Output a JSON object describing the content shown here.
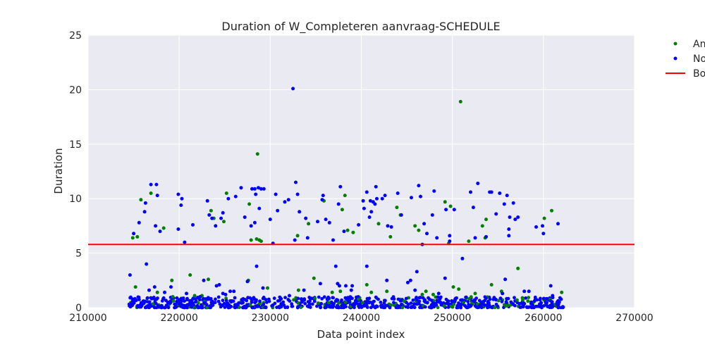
{
  "chart_data": {
    "type": "scatter",
    "title": "Duration of W_Completeren aanvraag-SCHEDULE",
    "xlabel": "Data point index",
    "ylabel": "Duration",
    "xlim": [
      210000,
      270000
    ],
    "ylim": [
      0,
      25
    ],
    "x_ticks": [
      "210000",
      "220000",
      "230000",
      "240000",
      "250000",
      "260000",
      "270000"
    ],
    "y_ticks": [
      "0",
      "5",
      "10",
      "15",
      "20",
      "25"
    ],
    "grid": true,
    "legend_position": "outside right",
    "background": "#EAEAF2",
    "series": [
      {
        "name": "An",
        "color": "#008000",
        "points": [
          [
            214900,
            6.4
          ],
          [
            215400,
            6.5
          ],
          [
            215200,
            1.9
          ],
          [
            215800,
            9.9
          ],
          [
            216900,
            10.5
          ],
          [
            217600,
            1.4
          ],
          [
            218300,
            7.3
          ],
          [
            219200,
            2.5
          ],
          [
            219300,
            1.0
          ],
          [
            221200,
            3.0
          ],
          [
            221700,
            1.1
          ],
          [
            222500,
            1.1
          ],
          [
            223200,
            2.6
          ],
          [
            223500,
            8.9
          ],
          [
            223800,
            8.2
          ],
          [
            224900,
            7.9
          ],
          [
            225200,
            10.5
          ],
          [
            227600,
            2.5
          ],
          [
            227700,
            9.5
          ],
          [
            227900,
            6.2
          ],
          [
            228500,
            6.3
          ],
          [
            228600,
            14.1
          ],
          [
            228800,
            6.2
          ],
          [
            229000,
            6.1
          ],
          [
            229700,
            1.8
          ],
          [
            233000,
            6.6
          ],
          [
            233100,
            1.6
          ],
          [
            234200,
            7.7
          ],
          [
            234800,
            2.7
          ],
          [
            235900,
            9.8
          ],
          [
            236800,
            1.4
          ],
          [
            237700,
            1.5
          ],
          [
            237900,
            9.0
          ],
          [
            238200,
            10.3
          ],
          [
            238500,
            7.1
          ],
          [
            239100,
            6.9
          ],
          [
            240600,
            2.1
          ],
          [
            241100,
            1.4
          ],
          [
            241900,
            7.7
          ],
          [
            242800,
            1.5
          ],
          [
            243200,
            6.5
          ],
          [
            243900,
            9.2
          ],
          [
            244300,
            8.5
          ],
          [
            245900,
            7.5
          ],
          [
            246300,
            7.1
          ],
          [
            246700,
            1.2
          ],
          [
            247100,
            1.5
          ],
          [
            247900,
            1.2
          ],
          [
            249200,
            9.7
          ],
          [
            249600,
            5.9
          ],
          [
            249800,
            9.3
          ],
          [
            250100,
            1.9
          ],
          [
            250700,
            1.7
          ],
          [
            250900,
            18.9
          ],
          [
            251800,
            6.1
          ],
          [
            252500,
            1.3
          ],
          [
            253300,
            7.5
          ],
          [
            253600,
            6.4
          ],
          [
            253700,
            8.1
          ],
          [
            254300,
            2.1
          ],
          [
            255400,
            1.5
          ],
          [
            256100,
            0.2
          ],
          [
            257100,
            0.7
          ],
          [
            257200,
            3.6
          ],
          [
            257700,
            0.9
          ],
          [
            260100,
            8.2
          ],
          [
            260900,
            8.9
          ],
          [
            262000,
            1.4
          ],
          [
            258300,
            0.6
          ],
          [
            244700,
            0.6
          ]
        ]
      },
      {
        "name": "No",
        "color": "#0000FF",
        "points": [
          [
            214600,
            3.0
          ],
          [
            215000,
            6.8
          ],
          [
            215600,
            7.8
          ],
          [
            216200,
            8.8
          ],
          [
            216300,
            9.6
          ],
          [
            216400,
            4.0
          ],
          [
            216700,
            1.6
          ],
          [
            216900,
            11.3
          ],
          [
            217300,
            1.9
          ],
          [
            217400,
            7.5
          ],
          [
            217500,
            11.3
          ],
          [
            217600,
            10.3
          ],
          [
            217900,
            7.0
          ],
          [
            219100,
            1.9
          ],
          [
            219900,
            10.4
          ],
          [
            219900,
            7.2
          ],
          [
            220200,
            9.4
          ],
          [
            220300,
            10.0
          ],
          [
            220600,
            6.0
          ],
          [
            220800,
            1.3
          ],
          [
            221500,
            7.6
          ],
          [
            222300,
            1.0
          ],
          [
            222700,
            2.5
          ],
          [
            223100,
            9.8
          ],
          [
            223300,
            8.5
          ],
          [
            223600,
            8.2
          ],
          [
            224000,
            7.5
          ],
          [
            224100,
            2.0
          ],
          [
            224400,
            2.1
          ],
          [
            224600,
            8.2
          ],
          [
            224800,
            8.7
          ],
          [
            224800,
            1.3
          ],
          [
            225100,
            1.2
          ],
          [
            225400,
            10.0
          ],
          [
            225600,
            1.5
          ],
          [
            226200,
            10.2
          ],
          [
            226800,
            11.0
          ],
          [
            227200,
            8.3
          ],
          [
            227500,
            2.4
          ],
          [
            227900,
            7.5
          ],
          [
            228000,
            10.9
          ],
          [
            228300,
            7.8
          ],
          [
            228300,
            10.9
          ],
          [
            228400,
            10.4
          ],
          [
            228500,
            3.8
          ],
          [
            228700,
            11.0
          ],
          [
            228800,
            9.1
          ],
          [
            229000,
            10.9
          ],
          [
            229300,
            10.9
          ],
          [
            229200,
            1.8
          ],
          [
            230000,
            8.1
          ],
          [
            230300,
            5.9
          ],
          [
            230600,
            10.4
          ],
          [
            230800,
            8.9
          ],
          [
            231600,
            9.7
          ],
          [
            232000,
            9.9
          ],
          [
            232500,
            20.1
          ],
          [
            232700,
            6.2
          ],
          [
            232800,
            11.5
          ],
          [
            233000,
            10.4
          ],
          [
            233200,
            8.8
          ],
          [
            233700,
            1.6
          ],
          [
            233900,
            8.2
          ],
          [
            234100,
            6.4
          ],
          [
            235200,
            7.9
          ],
          [
            235500,
            2.2
          ],
          [
            235700,
            9.9
          ],
          [
            235800,
            10.3
          ],
          [
            236100,
            8.1
          ],
          [
            236500,
            7.8
          ],
          [
            236900,
            6.2
          ],
          [
            237200,
            3.8
          ],
          [
            237400,
            2.2
          ],
          [
            237500,
            9.5
          ],
          [
            237700,
            11.1
          ],
          [
            238100,
            7.0
          ],
          [
            238300,
            2.0
          ],
          [
            238900,
            1.6
          ],
          [
            239000,
            2.0
          ],
          [
            239700,
            7.6
          ],
          [
            240200,
            9.8
          ],
          [
            240300,
            9.1
          ],
          [
            240600,
            10.6
          ],
          [
            240600,
            3.8
          ],
          [
            240900,
            8.3
          ],
          [
            241000,
            9.8
          ],
          [
            241100,
            8.8
          ],
          [
            241300,
            9.7
          ],
          [
            241500,
            9.5
          ],
          [
            241600,
            11.1
          ],
          [
            241700,
            10.0
          ],
          [
            242300,
            10.0
          ],
          [
            242600,
            10.3
          ],
          [
            242800,
            2.5
          ],
          [
            242900,
            7.5
          ],
          [
            243300,
            7.4
          ],
          [
            244000,
            10.5
          ],
          [
            244400,
            8.5
          ],
          [
            245400,
            2.5
          ],
          [
            245500,
            10.1
          ],
          [
            245900,
            1.6
          ],
          [
            246100,
            3.3
          ],
          [
            246300,
            11.2
          ],
          [
            246500,
            10.2
          ],
          [
            246700,
            5.8
          ],
          [
            246900,
            7.7
          ],
          [
            247200,
            6.8
          ],
          [
            247800,
            8.5
          ],
          [
            248000,
            10.7
          ],
          [
            248300,
            6.4
          ],
          [
            248500,
            1.3
          ],
          [
            249200,
            2.7
          ],
          [
            249300,
            9.0
          ],
          [
            249700,
            6.6
          ],
          [
            249700,
            6.1
          ],
          [
            250200,
            9.0
          ],
          [
            251100,
            4.5
          ],
          [
            252000,
            10.6
          ],
          [
            252300,
            9.2
          ],
          [
            252500,
            6.4
          ],
          [
            252800,
            11.4
          ],
          [
            253700,
            6.5
          ],
          [
            254100,
            10.6
          ],
          [
            254300,
            10.6
          ],
          [
            254800,
            8.6
          ],
          [
            255200,
            10.5
          ],
          [
            255500,
            1.3
          ],
          [
            255700,
            9.5
          ],
          [
            256000,
            10.3
          ],
          [
            256200,
            7.2
          ],
          [
            256200,
            6.6
          ],
          [
            256300,
            8.3
          ],
          [
            256700,
            9.6
          ],
          [
            256900,
            8.1
          ],
          [
            257200,
            8.3
          ],
          [
            257900,
            1.5
          ],
          [
            258400,
            1.5
          ],
          [
            259200,
            7.4
          ],
          [
            259900,
            7.5
          ],
          [
            260000,
            6.8
          ],
          [
            260800,
            2.0
          ],
          [
            261000,
            1.1
          ],
          [
            261600,
            7.7
          ],
          [
            255800,
            2.6
          ],
          [
            245100,
            2.3
          ],
          [
            237600,
            2.0
          ],
          [
            232100,
            1.1
          ],
          [
            226000,
            1.5
          ],
          [
            218400,
            1.4
          ]
        ]
      },
      {
        "name": "Bo",
        "color": "#FF0000",
        "kind": "hline",
        "y": 5.8
      }
    ],
    "dense_band": {
      "x_range": [
        214500,
        262200
      ],
      "y_range": [
        0,
        1.0
      ]
    }
  }
}
